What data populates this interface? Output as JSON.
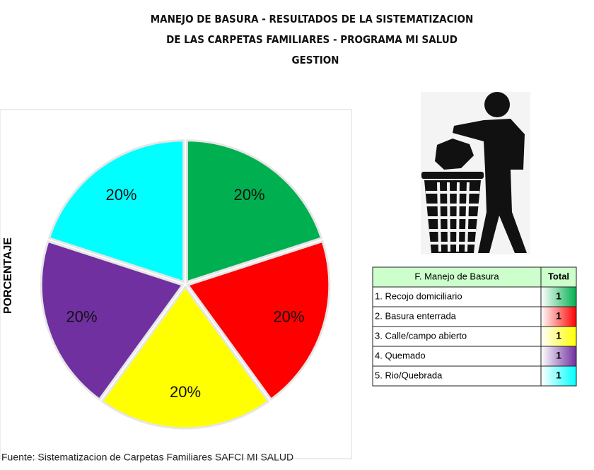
{
  "chart_data": {
    "type": "pie",
    "title_lines": [
      "MANEJO DE BASURA - RESULTADOS DE LA SISTEMATIZACION",
      "DE LAS CARPETAS FAMILIARES - PROGRAMA MI SALUD",
      "GESTION"
    ],
    "y_label": "PORCENTAJE",
    "categories": [
      "1. Recojo domiciliario",
      "2. Basura enterrada",
      "3. Calle/campo abierto",
      "4. Quemado",
      "5. Rio/Quebrada"
    ],
    "values": [
      20,
      20,
      20,
      20,
      20
    ],
    "value_labels": [
      "20%",
      "20%",
      "20%",
      "20%",
      "20%"
    ],
    "colors": [
      "#00b050",
      "#ff0000",
      "#ffff00",
      "#7030a0",
      "#00ffff"
    ],
    "source": "Fuente: Sistematizacion de Carpetas Familiares SAFCI MI SALUD"
  },
  "table": {
    "header": [
      "F. Manejo de Basura",
      "Total"
    ],
    "rows": [
      [
        "1. Recojo domiciliario",
        1
      ],
      [
        "2. Basura enterrada",
        1
      ],
      [
        "3. Calle/campo abierto",
        1
      ],
      [
        "4. Quemado",
        1
      ],
      [
        "5. Rio/Quebrada",
        1
      ]
    ]
  }
}
